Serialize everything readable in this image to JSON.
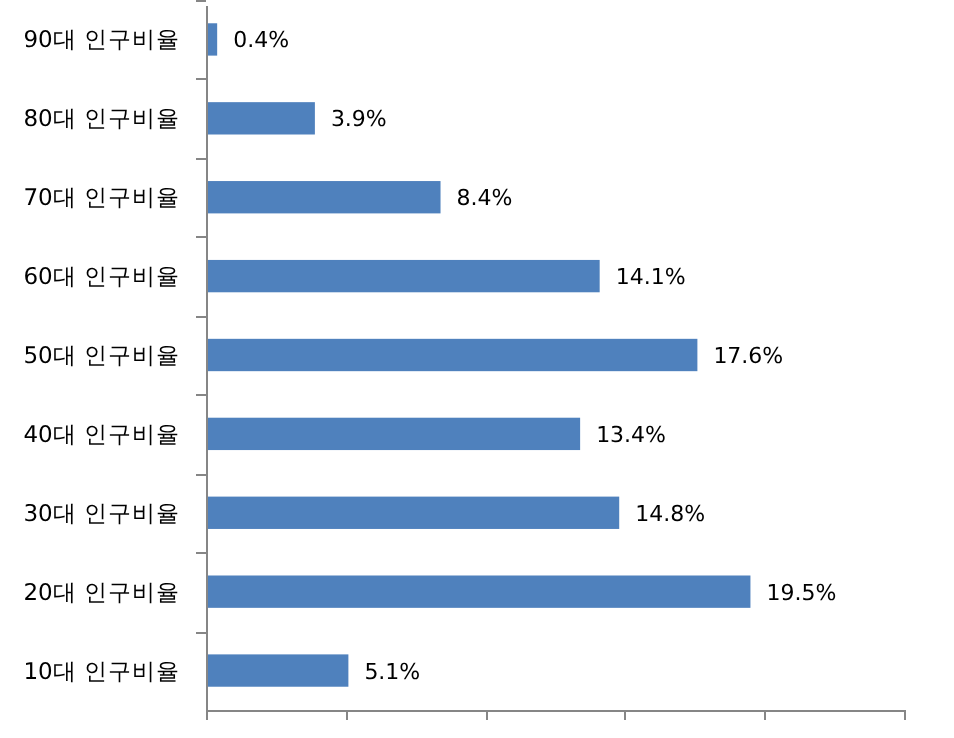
{
  "chart_data": {
    "type": "bar",
    "orientation": "horizontal",
    "categories": [
      "90대 인구비율",
      "80대 인구비율",
      "70대 인구비율",
      "60대 인구비율",
      "50대 인구비율",
      "40대 인구비율",
      "30대 인구비율",
      "20대 인구비율",
      "10대 인구비율"
    ],
    "values": [
      0.4,
      3.9,
      8.4,
      14.1,
      17.6,
      13.4,
      14.8,
      19.5,
      5.1
    ],
    "value_labels": [
      "0.4%",
      "3.9%",
      "8.4%",
      "14.1%",
      "17.6%",
      "13.4%",
      "14.8%",
      "19.5%",
      "5.1%"
    ],
    "color": "#4f81bd",
    "xlim": [
      0,
      25
    ],
    "xticks": [
      {
        "value": 0,
        "label": null
      },
      {
        "value": 5,
        "label": null
      },
      {
        "value": 10,
        "label": null
      },
      {
        "value": 15,
        "label": null
      },
      {
        "value": 20,
        "label": null
      },
      {
        "value": 25,
        "label": null
      }
    ],
    "tick_labels": "y"
  }
}
